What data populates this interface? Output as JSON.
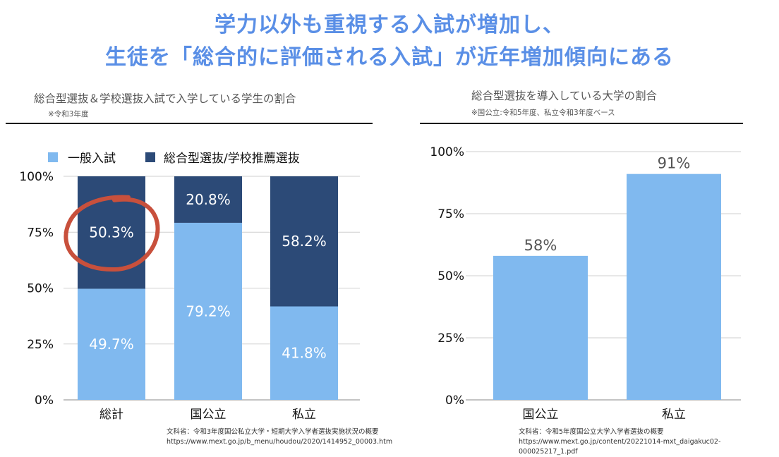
{
  "headline": {
    "line1": "学力以外も重視する入試が増加し、",
    "line2": "生徒を「総合的に評価される入試」が近年増加傾向にある"
  },
  "colors": {
    "headline": "#5a8fe6",
    "light": "#80b9ef",
    "dark": "#2c4a77",
    "highlight_ring": "#c8503c"
  },
  "left_chart": {
    "title": "総合型選抜＆学校選抜入試で入学している学生の割合",
    "note": "※令和3年度",
    "source_line1": "文科省：令和3年度国公私立大学・短期大学入学者選抜実施状況の概要",
    "source_line2": "https://www.mext.go.jp/b_menu/houdou/2020/1414952_00003.htm"
  },
  "right_chart": {
    "title": "総合型選抜を導入している大学の割合",
    "note": "※国公立:令和5年度、私立令和3年度ベース",
    "source_line1": "文科省：令和5年度国公立大学入学者選抜の概要",
    "source_line2": "https://www.mext.go.jp/content/20221014-mxt_daigakuc02-000025217_1.pdf"
  },
  "chart_data": [
    {
      "type": "bar",
      "stacked": true,
      "categories": [
        "総計",
        "国公立",
        "私立"
      ],
      "series": [
        {
          "name": "一般入試",
          "values": [
            49.7,
            79.2,
            41.8
          ],
          "labels": [
            "49.7%",
            "79.2%",
            "41.8%"
          ],
          "color": "#80b9ef"
        },
        {
          "name": "総合型選抜/学校推薦選抜",
          "values": [
            50.3,
            20.8,
            58.2
          ],
          "labels": [
            "50.3%",
            "20.8%",
            "58.2%"
          ],
          "color": "#2c4a77"
        }
      ],
      "yticks": [
        "0%",
        "25%",
        "50%",
        "75%",
        "100%"
      ],
      "ylim": [
        0,
        100
      ],
      "legend": "top-left",
      "grid": true,
      "highlight": "総計"
    },
    {
      "type": "bar",
      "categories": [
        "国公立",
        "私立"
      ],
      "values": [
        58,
        91
      ],
      "labels": [
        "58%",
        "91%"
      ],
      "color": "#80b9ef",
      "yticks": [
        "0%",
        "25%",
        "50%",
        "75%",
        "100%"
      ],
      "ylim": [
        0,
        100
      ],
      "grid": true
    }
  ]
}
